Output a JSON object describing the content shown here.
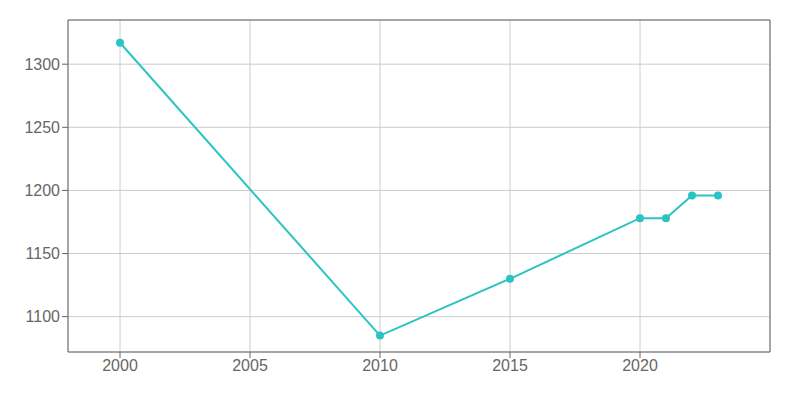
{
  "chart_data": {
    "type": "line",
    "x": [
      2000,
      2010,
      2015,
      2020,
      2021,
      2022,
      2023
    ],
    "values": [
      1317,
      1085,
      1130,
      1178,
      1178,
      1196,
      1196
    ],
    "color": "#2bc4c4",
    "marker": "circle",
    "xlim": [
      1998,
      2025
    ],
    "ylim": [
      1072,
      1335
    ],
    "xticks": [
      2000,
      2005,
      2010,
      2015,
      2020
    ],
    "yticks": [
      1100,
      1150,
      1200,
      1250,
      1300
    ],
    "grid": true
  }
}
